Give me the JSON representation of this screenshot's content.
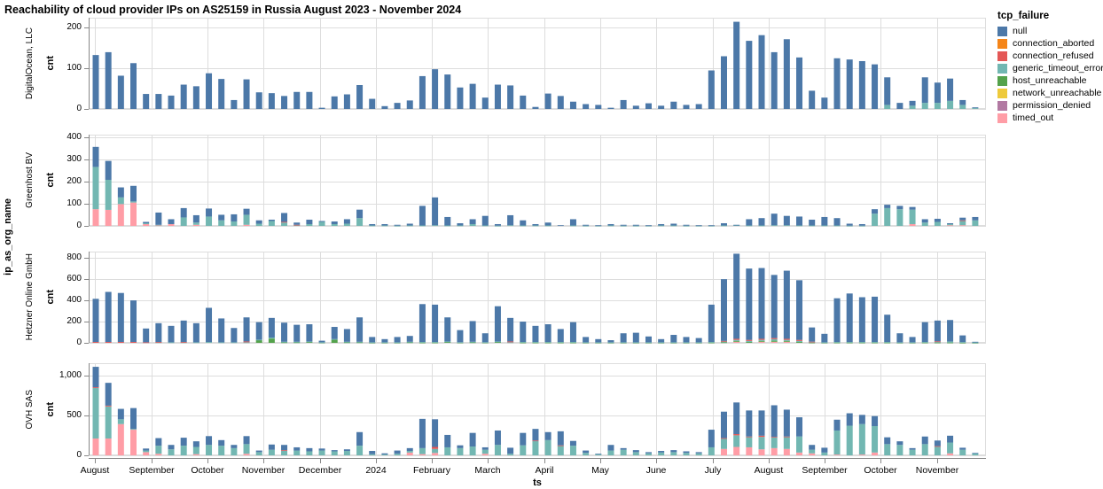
{
  "title": "Reachability of cloud provider IPs on AS25159 in Russia August 2023 - November 2024",
  "row_dimension_label": "ip_as_org_name",
  "y_axis_title": "cnt",
  "x_axis": {
    "title": "ts",
    "ticks": [
      "August",
      "September",
      "October",
      "November",
      "December",
      "2024",
      "February",
      "March",
      "April",
      "May",
      "June",
      "July",
      "August",
      "September",
      "October",
      "November"
    ]
  },
  "legend": {
    "title": "tcp_failure",
    "items": [
      {
        "label": "null",
        "color": "#4c78a8"
      },
      {
        "label": "connection_aborted",
        "color": "#f58518"
      },
      {
        "label": "connection_refused",
        "color": "#e45756"
      },
      {
        "label": "generic_timeout_error",
        "color": "#72b7b2"
      },
      {
        "label": "host_unreachable",
        "color": "#54a24b"
      },
      {
        "label": "network_unreachable",
        "color": "#eeca3b"
      },
      {
        "label": "permission_denied",
        "color": "#b279a2"
      },
      {
        "label": "timed_out",
        "color": "#ff9da6"
      }
    ]
  },
  "chart_data": {
    "type": "bar",
    "stacked": true,
    "x_unit": "week",
    "x_range": "2023-08 to 2024-11",
    "grid": true,
    "stack_order_bottom_to_top": [
      "timed_out",
      "permission_denied",
      "network_unreachable",
      "host_unreachable",
      "generic_timeout_error",
      "connection_refused",
      "connection_aborted",
      "null"
    ],
    "panels": [
      {
        "org": "DigitalOcean, LLC",
        "y_ticks": [
          0,
          100,
          200
        ],
        "y_max": 225,
        "series": {
          "null": [
            133,
            140,
            82,
            113,
            37,
            37,
            33,
            60,
            56,
            88,
            74,
            22,
            73,
            41,
            39,
            32,
            42,
            42,
            3,
            31,
            36,
            59,
            25,
            7,
            15,
            21,
            81,
            98,
            85,
            53,
            62,
            28,
            60,
            58,
            33,
            5,
            38,
            32,
            18,
            12,
            10,
            3,
            22,
            8,
            14,
            8,
            18,
            10,
            12,
            95,
            130,
            215,
            168,
            182,
            140,
            172,
            127,
            45,
            28,
            125,
            122,
            118,
            110,
            68,
            15,
            12,
            63,
            50,
            55,
            12,
            2
          ],
          "generic_timeout_error": [
            0,
            0,
            0,
            0,
            0,
            0,
            0,
            0,
            0,
            0,
            0,
            0,
            0,
            0,
            0,
            0,
            0,
            0,
            0,
            0,
            0,
            0,
            0,
            0,
            0,
            0,
            0,
            0,
            0,
            0,
            0,
            0,
            0,
            0,
            0,
            0,
            0,
            0,
            0,
            0,
            0,
            0,
            0,
            0,
            0,
            0,
            0,
            0,
            0,
            0,
            0,
            0,
            0,
            0,
            0,
            0,
            0,
            0,
            0,
            0,
            0,
            0,
            0,
            10,
            0,
            8,
            15,
            15,
            20,
            10,
            2
          ]
        }
      },
      {
        "org": "Greenhost BV",
        "y_ticks": [
          0,
          100,
          200,
          300,
          400
        ],
        "y_max": 410,
        "series": {
          "timed_out": [
            75,
            72,
            98,
            105,
            8,
            3,
            8,
            0,
            5,
            0,
            0,
            0,
            5,
            0,
            0,
            0,
            0,
            0,
            0,
            0,
            0,
            0,
            0,
            0,
            0,
            0,
            0,
            0,
            0,
            0,
            0,
            0,
            0,
            0,
            0,
            0,
            0,
            0,
            0,
            0,
            0,
            0,
            0,
            0,
            0,
            0,
            0,
            0,
            0,
            0,
            0,
            0,
            0,
            0,
            0,
            0,
            0,
            0,
            0,
            0,
            0,
            0,
            0,
            0,
            0,
            8,
            0,
            0,
            3,
            3,
            0
          ],
          "generic_timeout_error": [
            190,
            135,
            30,
            5,
            4,
            2,
            0,
            38,
            10,
            42,
            25,
            20,
            45,
            10,
            22,
            15,
            3,
            8,
            18,
            8,
            10,
            35,
            2,
            2,
            1,
            2,
            2,
            3,
            2,
            2,
            8,
            2,
            1,
            3,
            2,
            2,
            2,
            0,
            2,
            1,
            1,
            2,
            1,
            1,
            1,
            2,
            2,
            1,
            1,
            1,
            2,
            4,
            2,
            2,
            3,
            3,
            2,
            2,
            2,
            2,
            1,
            1,
            55,
            80,
            75,
            65,
            15,
            18,
            5,
            20,
            25
          ],
          "connection_refused": [
            0,
            0,
            0,
            0,
            0,
            0,
            0,
            0,
            0,
            0,
            0,
            0,
            0,
            0,
            0,
            3,
            2,
            0,
            0,
            0,
            0,
            0,
            0,
            0,
            0,
            0,
            0,
            0,
            0,
            0,
            0,
            0,
            0,
            0,
            0,
            0,
            0,
            0,
            0,
            0,
            0,
            0,
            0,
            0,
            0,
            0,
            0,
            0,
            0,
            0,
            0,
            0,
            0,
            0,
            0,
            0,
            0,
            0,
            0,
            0,
            0,
            0,
            0,
            0,
            0,
            0,
            0,
            0,
            0,
            2,
            0
          ],
          "null": [
            90,
            85,
            45,
            70,
            6,
            55,
            22,
            42,
            33,
            36,
            25,
            32,
            27,
            15,
            6,
            40,
            10,
            20,
            4,
            12,
            20,
            38,
            6,
            6,
            4,
            8,
            88,
            125,
            38,
            10,
            22,
            43,
            7,
            45,
            23,
            6,
            13,
            3,
            28,
            4,
            2,
            6,
            4,
            4,
            2,
            6,
            8,
            4,
            2,
            2,
            10,
            1,
            28,
            33,
            52,
            42,
            40,
            26,
            38,
            33,
            9,
            7,
            20,
            15,
            15,
            12,
            15,
            14,
            4,
            12,
            15
          ]
        }
      },
      {
        "org": "Hetzner Online GmbH",
        "y_ticks": [
          0,
          200,
          400,
          600,
          800
        ],
        "y_max": 860,
        "series": {
          "timed_out": [
            0,
            0,
            0,
            0,
            0,
            0,
            0,
            0,
            0,
            0,
            0,
            0,
            0,
            0,
            0,
            0,
            0,
            0,
            0,
            0,
            0,
            0,
            0,
            0,
            0,
            0,
            0,
            0,
            0,
            0,
            0,
            0,
            0,
            0,
            0,
            0,
            0,
            0,
            0,
            0,
            0,
            0,
            0,
            0,
            0,
            0,
            0,
            0,
            0,
            0,
            0,
            10,
            0,
            10,
            10,
            10,
            0,
            0,
            0,
            0,
            0,
            0,
            0,
            0,
            0,
            0,
            0,
            0,
            0,
            0,
            0
          ],
          "host_unreachable": [
            0,
            0,
            0,
            0,
            0,
            0,
            0,
            0,
            0,
            0,
            0,
            0,
            0,
            25,
            40,
            5,
            5,
            8,
            3,
            30,
            5,
            5,
            2,
            2,
            2,
            5,
            3,
            3,
            8,
            3,
            5,
            3,
            8,
            0,
            3,
            3,
            3,
            3,
            3,
            2,
            2,
            2,
            2,
            2,
            2,
            2,
            2,
            2,
            2,
            3,
            5,
            8,
            8,
            8,
            10,
            8,
            8,
            3,
            2,
            3,
            3,
            3,
            3,
            3,
            2,
            2,
            3,
            3,
            3,
            2,
            1
          ],
          "generic_timeout_error": [
            0,
            0,
            0,
            0,
            0,
            5,
            5,
            5,
            5,
            8,
            5,
            5,
            5,
            5,
            10,
            5,
            5,
            5,
            2,
            5,
            5,
            5,
            3,
            3,
            3,
            5,
            5,
            5,
            5,
            3,
            5,
            3,
            5,
            5,
            5,
            5,
            5,
            5,
            5,
            3,
            3,
            3,
            3,
            3,
            3,
            3,
            3,
            3,
            3,
            5,
            8,
            10,
            10,
            10,
            15,
            10,
            10,
            5,
            3,
            5,
            5,
            5,
            5,
            5,
            3,
            3,
            5,
            8,
            10,
            5,
            3
          ],
          "connection_refused": [
            8,
            8,
            8,
            8,
            5,
            3,
            0,
            3,
            0,
            0,
            0,
            0,
            8,
            0,
            0,
            0,
            0,
            0,
            0,
            0,
            0,
            0,
            0,
            0,
            0,
            0,
            0,
            0,
            0,
            0,
            0,
            0,
            0,
            8,
            0,
            0,
            0,
            0,
            0,
            0,
            0,
            0,
            0,
            0,
            0,
            0,
            0,
            0,
            0,
            0,
            5,
            10,
            10,
            10,
            10,
            10,
            10,
            3,
            0,
            0,
            0,
            0,
            0,
            0,
            0,
            0,
            0,
            3,
            0,
            0,
            0
          ],
          "null": [
            407,
            472,
            462,
            392,
            130,
            177,
            155,
            202,
            180,
            322,
            225,
            135,
            227,
            165,
            185,
            180,
            160,
            162,
            15,
            115,
            120,
            230,
            50,
            30,
            50,
            55,
            357,
            352,
            227,
            114,
            195,
            84,
            332,
            222,
            192,
            152,
            167,
            122,
            187,
            50,
            30,
            20,
            85,
            90,
            55,
            30,
            70,
            50,
            40,
            352,
            582,
            802,
            672,
            667,
            595,
            642,
            562,
            134,
            80,
            412,
            457,
            422,
            427,
            257,
            85,
            50,
            187,
            196,
            202,
            63,
            6
          ]
        }
      },
      {
        "org": "OVH SAS",
        "y_ticks": [
          0,
          500,
          1000
        ],
        "y_max": 1150,
        "series": {
          "timed_out": [
            210,
            210,
            390,
            320,
            40,
            20,
            0,
            0,
            15,
            0,
            0,
            0,
            20,
            0,
            0,
            0,
            0,
            0,
            0,
            0,
            0,
            0,
            0,
            0,
            0,
            35,
            15,
            30,
            0,
            0,
            0,
            20,
            0,
            0,
            0,
            0,
            0,
            0,
            0,
            0,
            0,
            0,
            0,
            0,
            0,
            0,
            0,
            0,
            0,
            0,
            80,
            105,
            100,
            75,
            90,
            80,
            35,
            25,
            0,
            10,
            0,
            10,
            35,
            0,
            0,
            0,
            0,
            0,
            25,
            0,
            0
          ],
          "generic_timeout_error": [
            630,
            400,
            60,
            10,
            20,
            100,
            75,
            120,
            90,
            130,
            120,
            90,
            120,
            40,
            70,
            60,
            60,
            50,
            60,
            50,
            55,
            120,
            15,
            10,
            20,
            20,
            75,
            50,
            100,
            90,
            110,
            50,
            130,
            20,
            125,
            180,
            190,
            120,
            120,
            30,
            15,
            60,
            70,
            40,
            25,
            35,
            40,
            30,
            25,
            100,
            130,
            145,
            130,
            155,
            135,
            150,
            200,
            45,
            35,
            300,
            370,
            380,
            330,
            140,
            130,
            70,
            140,
            110,
            135,
            70,
            25
          ],
          "connection_refused": [
            10,
            10,
            0,
            0,
            0,
            0,
            0,
            0,
            0,
            0,
            0,
            0,
            0,
            0,
            0,
            5,
            0,
            0,
            0,
            0,
            0,
            0,
            0,
            0,
            0,
            0,
            0,
            25,
            0,
            0,
            0,
            0,
            0,
            0,
            0,
            5,
            0,
            5,
            0,
            0,
            0,
            0,
            0,
            0,
            0,
            0,
            0,
            0,
            0,
            0,
            5,
            15,
            5,
            15,
            5,
            5,
            0,
            0,
            0,
            0,
            0,
            0,
            0,
            0,
            0,
            0,
            0,
            5,
            0,
            0,
            0
          ],
          "null": [
            255,
            285,
            130,
            260,
            25,
            95,
            55,
            100,
            70,
            110,
            70,
            40,
            100,
            20,
            65,
            65,
            40,
            40,
            25,
            15,
            20,
            170,
            40,
            15,
            40,
            35,
            365,
            345,
            155,
            35,
            170,
            30,
            180,
            75,
            155,
            145,
            100,
            175,
            60,
            30,
            5,
            70,
            20,
            25,
            15,
            20,
            25,
            20,
            15,
            220,
            330,
            395,
            325,
            315,
            395,
            335,
            240,
            60,
            60,
            135,
            155,
            115,
            125,
            85,
            45,
            20,
            95,
            70,
            85,
            25,
            5
          ]
        }
      }
    ]
  }
}
